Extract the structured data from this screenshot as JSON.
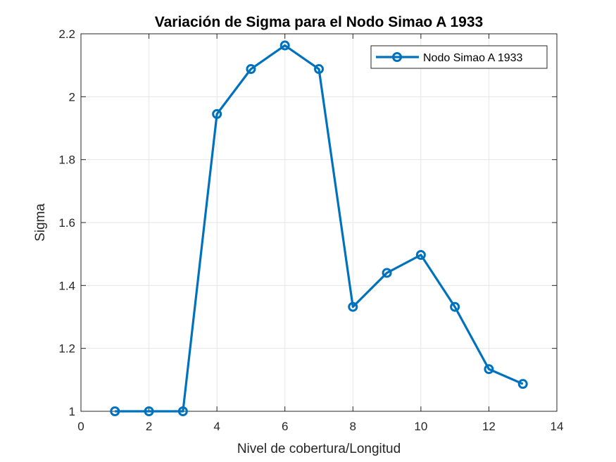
{
  "chart_data": {
    "type": "line",
    "title": "Variación de Sigma para el Nodo Simao A 1933",
    "xlabel": "Nivel de cobertura/Longitud",
    "ylabel": "Sigma",
    "xlim": [
      0,
      14
    ],
    "ylim": [
      1,
      2.2
    ],
    "xticks": [
      0,
      2,
      4,
      6,
      8,
      10,
      12,
      14
    ],
    "yticks": [
      1,
      1.2,
      1.4,
      1.6,
      1.8,
      2,
      2.2
    ],
    "xtick_labels": [
      "0",
      "2",
      "4",
      "6",
      "8",
      "10",
      "12",
      "14"
    ],
    "ytick_labels": [
      "1",
      "1.2",
      "1.4",
      "1.6",
      "1.8",
      "2",
      "2.2"
    ],
    "grid": true,
    "legend_position": "top-right",
    "series": [
      {
        "name": "Nodo Simao A 1933",
        "color": "#0072BD",
        "marker": "circle",
        "x": [
          1,
          2,
          3,
          4,
          5,
          6,
          7,
          8,
          9,
          10,
          11,
          12,
          13
        ],
        "y": [
          1.0,
          1.0,
          1.0,
          1.945,
          2.088,
          2.163,
          2.088,
          1.332,
          1.44,
          1.497,
          1.332,
          1.134,
          1.087
        ]
      }
    ]
  }
}
